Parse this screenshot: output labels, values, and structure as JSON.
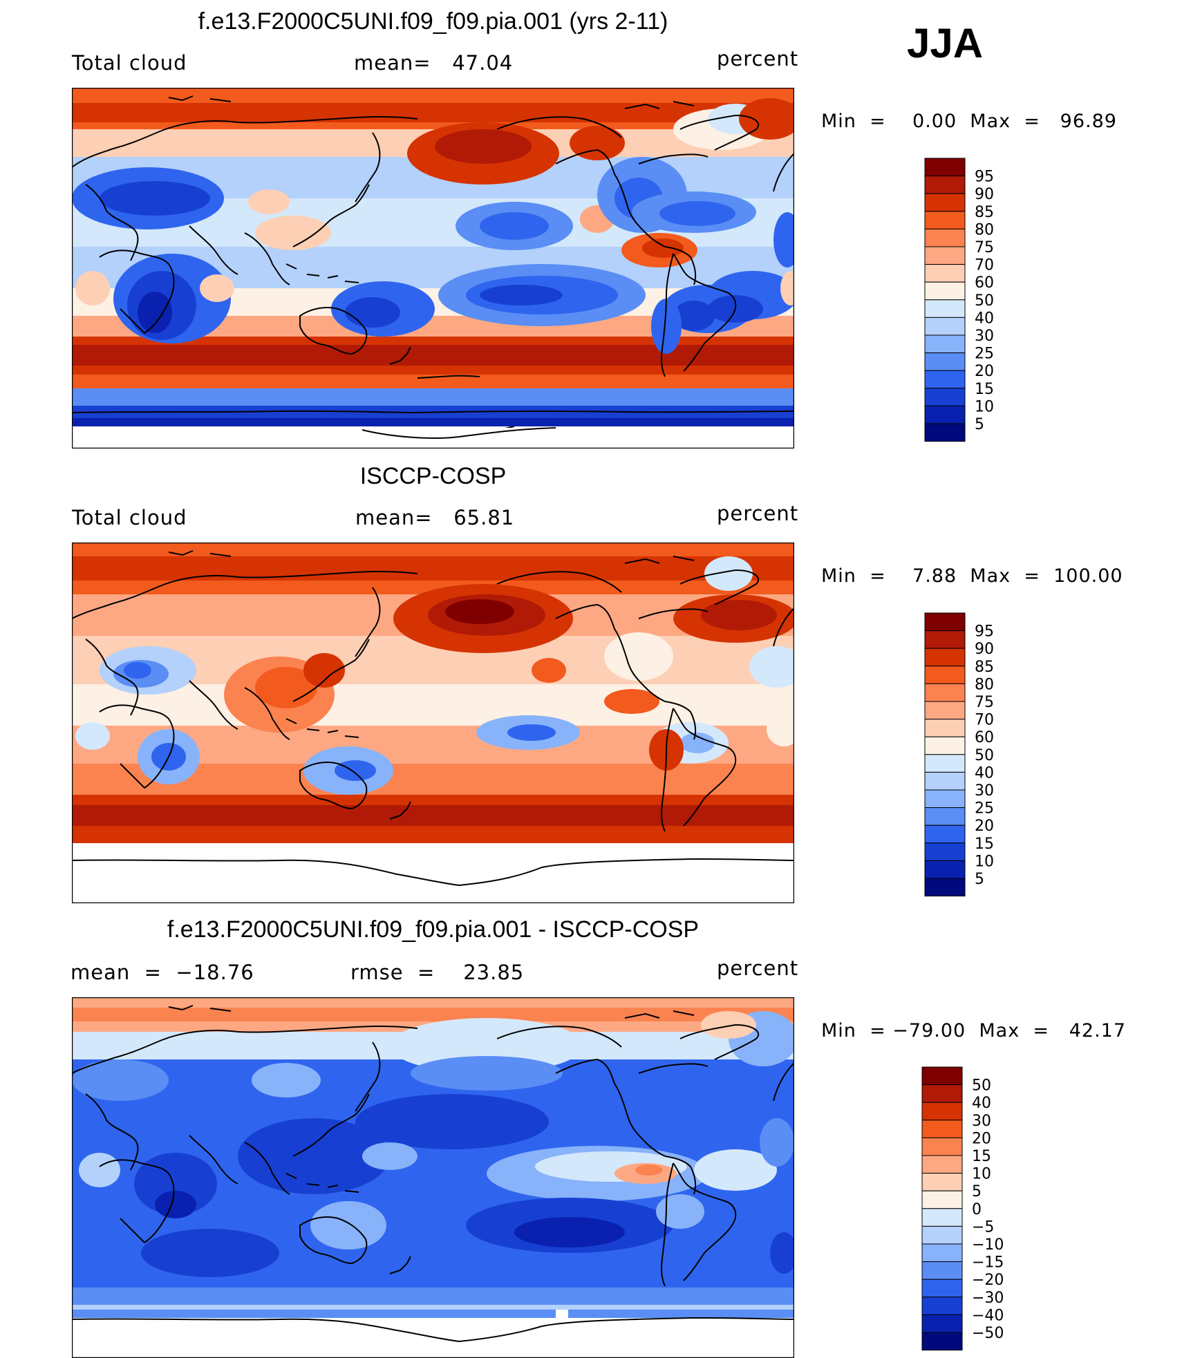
{
  "season": "JJA",
  "units_label": "percent",
  "chart_data": [
    {
      "type": "heatmap",
      "title": "f.e13.F2000C5UNI.f09_f09.pia.001 (yrs 2-11)",
      "left_label": "Total cloud",
      "center_label": "mean=   47.04",
      "right_label": "percent",
      "mean": 47.04,
      "min": 0.0,
      "max": 96.89,
      "minmax_text": "Min  =    0.00  Max  =   96.89",
      "colorbar": {
        "levels": [
          "95",
          "90",
          "85",
          "80",
          "75",
          "70",
          "60",
          "50",
          "40",
          "30",
          "25",
          "20",
          "15",
          "10",
          "5"
        ],
        "colors": [
          "#7f0000",
          "#b01a06",
          "#d63302",
          "#f25b1d",
          "#fb8350",
          "#fda883",
          "#fdcfb4",
          "#fdf0e4",
          "#d4e8fb",
          "#b3d1fb",
          "#88b3fa",
          "#5a8ef5",
          "#2f65ee",
          "#1740d3",
          "#0921ae",
          "#000a7d"
        ]
      },
      "map_field": "model total cloud fraction (percent)"
    },
    {
      "type": "heatmap",
      "title": "ISCCP-COSP",
      "left_label": "Total cloud",
      "center_label": "mean=   65.81",
      "right_label": "percent",
      "mean": 65.81,
      "min": 7.88,
      "max": 100.0,
      "minmax_text": "Min  =    7.88  Max  =  100.00",
      "colorbar": {
        "levels": [
          "95",
          "90",
          "85",
          "80",
          "75",
          "70",
          "60",
          "50",
          "40",
          "30",
          "25",
          "20",
          "15",
          "10",
          "5"
        ],
        "colors": [
          "#7f0000",
          "#b01a06",
          "#d63302",
          "#f25b1d",
          "#fb8350",
          "#fda883",
          "#fdcfb4",
          "#fdf0e4",
          "#d4e8fb",
          "#b3d1fb",
          "#88b3fa",
          "#5a8ef5",
          "#2f65ee",
          "#1740d3",
          "#0921ae",
          "#000a7d"
        ]
      },
      "map_field": "observed total cloud fraction (percent)"
    },
    {
      "type": "heatmap",
      "title": "f.e13.F2000C5UNI.f09_f09.pia.001 - ISCCP-COSP",
      "left_label": "mean  =  −18.76",
      "center_label": "rmse  =    23.85",
      "right_label": "percent",
      "mean": -18.76,
      "rmse": 23.85,
      "min": -79.0,
      "max": 42.17,
      "minmax_text": "Min  = −79.00  Max  =   42.17",
      "colorbar": {
        "levels": [
          "50",
          "40",
          "30",
          "20",
          "15",
          "10",
          "5",
          "0",
          "−5",
          "−10",
          "−15",
          "−20",
          "−30",
          "−40",
          "−50"
        ],
        "colors": [
          "#7f0000",
          "#b01a06",
          "#d63302",
          "#f25b1d",
          "#fb8350",
          "#fda883",
          "#fdcfb4",
          "#fdf0e4",
          "#d4e8fb",
          "#b3d1fb",
          "#88b3fa",
          "#5a8ef5",
          "#2f65ee",
          "#1740d3",
          "#0921ae",
          "#000a7d"
        ]
      },
      "map_field": "model minus observation difference (percent)"
    }
  ]
}
